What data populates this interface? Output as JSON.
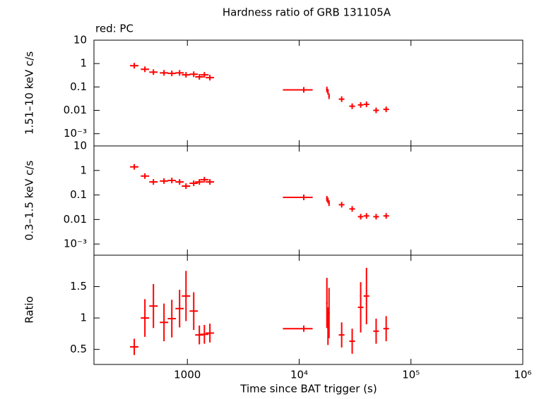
{
  "chart_data": {
    "type": "scatter",
    "title": "Hardness ratio of GRB 131105A",
    "annotation": "red: PC",
    "xlabel": "Time since BAT trigger (s)",
    "color": "#ff0000",
    "xlog": true,
    "xlim": [
      146,
      1000000
    ],
    "xticks": [
      1000,
      {
        "value": 10000,
        "label": "10⁴"
      },
      {
        "value": 100000,
        "label": "10⁵"
      },
      {
        "value": 1000000,
        "label": "10⁶"
      }
    ],
    "x": [
      335,
      417,
      497,
      618,
      726,
      852,
      972,
      1140,
      1280,
      1420,
      1590,
      11000,
      17700,
      18100,
      18500,
      24000,
      29800,
      35500,
      40000,
      48800,
      60000
    ],
    "x_lo": [
      307,
      383,
      456,
      567,
      666,
      782,
      892,
      1046,
      1174,
      1303,
      1459,
      7150,
      17400,
      17800,
      18200,
      22600,
      28100,
      33500,
      37700,
      46000,
      56600
    ],
    "x_hi": [
      365,
      455,
      542,
      674,
      791,
      929,
      1060,
      1243,
      1395,
      1548,
      1733,
      13200,
      18000,
      18400,
      18800,
      25400,
      31600,
      37600,
      42400,
      51700,
      63600
    ],
    "panels": [
      {
        "ylabel": "1.51–10 keV c/s",
        "log": true,
        "ylim": [
          0.0003,
          10
        ],
        "yticks": [
          10,
          1,
          0.1,
          0.01,
          {
            "value": 0.001,
            "label": "10⁻³"
          }
        ],
        "values": [
          0.81,
          0.57,
          0.43,
          0.4,
          0.38,
          0.4,
          0.33,
          0.35,
          0.27,
          0.33,
          0.25,
          0.075,
          0.078,
          0.062,
          0.04,
          0.03,
          0.015,
          0.017,
          0.018,
          0.01,
          0.011
        ]
      },
      {
        "ylabel": "0.3–1.5 keV c/s",
        "log": true,
        "ylim": [
          0.00035,
          10
        ],
        "yticks": [
          10,
          1,
          0.1,
          0.01,
          {
            "value": 0.001,
            "label": "10⁻³"
          }
        ],
        "values": [
          1.4,
          0.59,
          0.34,
          0.37,
          0.39,
          0.34,
          0.23,
          0.3,
          0.34,
          0.42,
          0.34,
          0.08,
          0.07,
          0.06,
          0.046,
          0.04,
          0.027,
          0.013,
          0.014,
          0.013,
          0.014
        ]
      },
      {
        "ylabel": "Ratio",
        "log": false,
        "ylim": [
          0.26,
          2.0
        ],
        "yticks": [
          0.5,
          1,
          1.5
        ],
        "values": [
          0.54,
          1.0,
          1.19,
          0.93,
          0.99,
          1.15,
          1.35,
          1.11,
          0.73,
          0.74,
          0.76,
          0.83,
          1.24,
          0.87,
          1.08,
          0.73,
          0.63,
          1.17,
          1.35,
          0.79,
          0.83
        ],
        "errors": [
          0.13,
          0.3,
          0.35,
          0.3,
          0.3,
          0.3,
          0.4,
          0.3,
          0.15,
          0.15,
          0.15,
          0.05,
          0.4,
          0.3,
          0.4,
          0.2,
          0.2,
          0.4,
          0.45,
          0.2,
          0.2
        ]
      }
    ]
  }
}
